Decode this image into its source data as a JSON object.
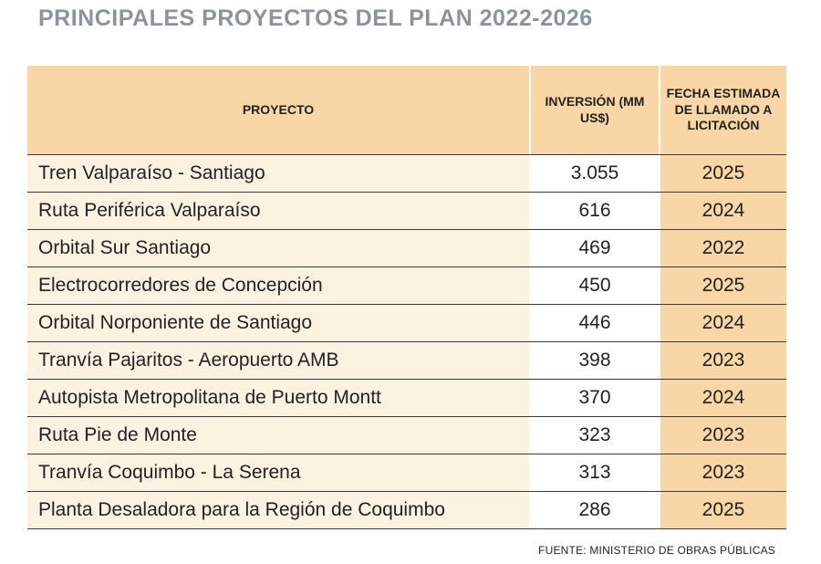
{
  "title": "PRINCIPALES PROYECTOS DEL PLAN 2022-2026",
  "table": {
    "headers": {
      "project": "PROYECTO",
      "investment": "INVERSIÓN (MM US$)",
      "date": "FECHA ESTIMADA DE LLAMADO A LICITACIÓN"
    },
    "rows": [
      {
        "project": "Tren Valparaíso - Santiago",
        "investment": "3.055",
        "year": "2025"
      },
      {
        "project": "Ruta Periférica Valparaíso",
        "investment": "616",
        "year": "2024"
      },
      {
        "project": "Orbital Sur Santiago",
        "investment": "469",
        "year": "2022"
      },
      {
        "project": "Electrocorredores de Concepción",
        "investment": "450",
        "year": "2025"
      },
      {
        "project": "Orbital Norponiente de Santiago",
        "investment": "446",
        "year": "2024"
      },
      {
        "project": "Tranvía Pajaritos - Aeropuerto AMB",
        "investment": "398",
        "year": "2023"
      },
      {
        "project": "Autopista Metropolitana de Puerto Montt",
        "investment": "370",
        "year": "2024"
      },
      {
        "project": "Ruta Pie de Monte",
        "investment": "323",
        "year": "2023"
      },
      {
        "project": "Tranvía Coquimbo - La Serena",
        "investment": "313",
        "year": "2023"
      },
      {
        "project": "Planta Desaladora para la Región de Coquimbo",
        "investment": "286",
        "year": "2025"
      }
    ]
  },
  "source": "FUENTE: MINISTERIO DE OBRAS PÚBLICAS",
  "colors": {
    "header_bg": "#f9d6a5",
    "project_bg": "#fbf2e2",
    "title": "#8d9499"
  }
}
